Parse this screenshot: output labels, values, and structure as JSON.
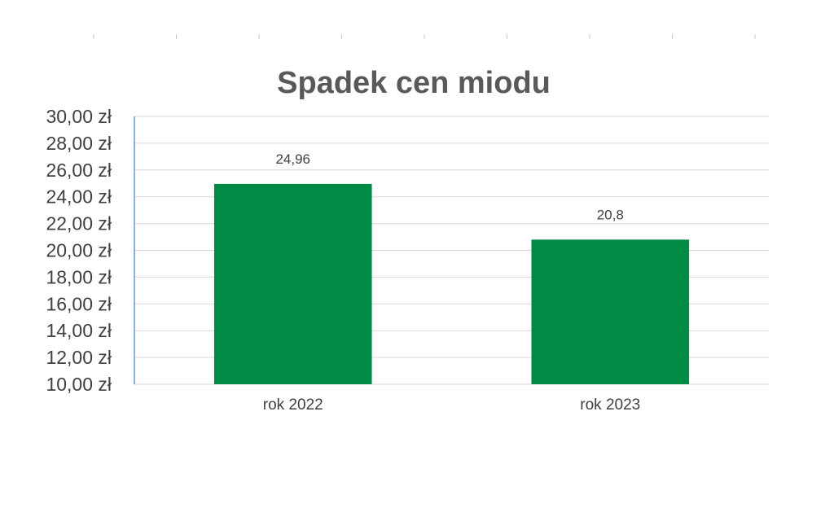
{
  "chart_data": {
    "type": "bar",
    "title": "Spadek cen miodu",
    "categories": [
      "rok 2022",
      "rok 2023"
    ],
    "values": [
      24.96,
      20.8
    ],
    "data_labels": [
      "24,96",
      "20,8"
    ],
    "ylim": [
      10,
      30
    ],
    "yticks": [
      "10,00 zł",
      "12,00 zł",
      "14,00 zł",
      "16,00 zł",
      "18,00 zł",
      "20,00 zł",
      "22,00 zł",
      "24,00 zł",
      "26,00 zł",
      "28,00 zł",
      "30,00 zł"
    ],
    "xlabel": "",
    "ylabel": "",
    "grid": true,
    "legend": "none",
    "bar_color": "#008a43"
  }
}
